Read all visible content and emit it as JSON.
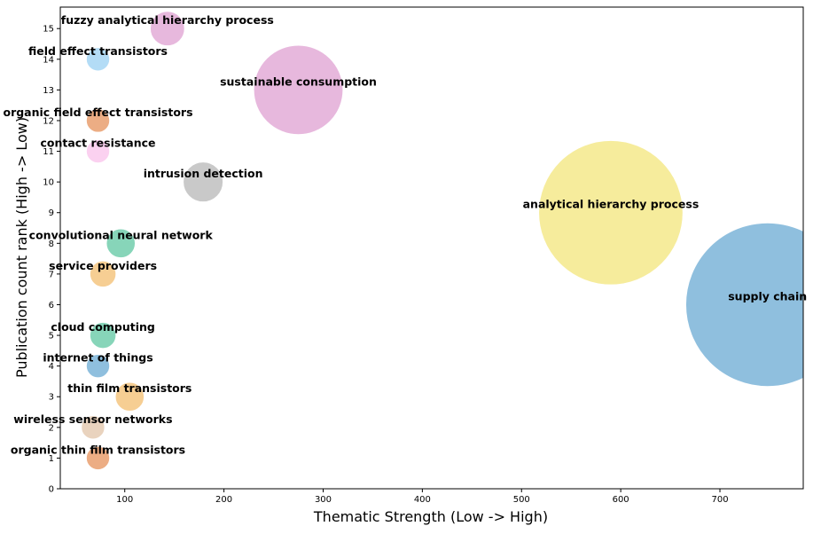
{
  "chart_data": {
    "type": "scatter",
    "title": "",
    "xlabel": "Thematic Strength (Low -> High)",
    "ylabel": "Publication count rank (High -> Low)",
    "xlim": [
      35,
      784
    ],
    "ylim": [
      0,
      15.7
    ],
    "x_ticks": [
      100,
      200,
      300,
      400,
      500,
      600,
      700
    ],
    "y_ticks": [
      0,
      1,
      2,
      3,
      4,
      5,
      6,
      7,
      8,
      9,
      10,
      11,
      12,
      13,
      14,
      15
    ],
    "grid": false,
    "legend": "none",
    "points": [
      {
        "label": "fuzzy analytical hierarchy process",
        "x": 143,
        "y": 15,
        "size": 13,
        "color": "#d98cc8"
      },
      {
        "label": "field effect transistors",
        "x": 73,
        "y": 14,
        "size": 9,
        "color": "#85c6f0"
      },
      {
        "label": "sustainable consumption",
        "x": 275,
        "y": 13,
        "size": 33,
        "color": "#d98cc8"
      },
      {
        "label": "organic field effect transistors",
        "x": 73,
        "y": 12,
        "size": 9,
        "color": "#e07b39"
      },
      {
        "label": "contact resistance",
        "x": 73,
        "y": 11,
        "size": 9,
        "color": "#f8b4e6"
      },
      {
        "label": "intrusion detection",
        "x": 179,
        "y": 10,
        "size": 15,
        "color": "#a8a8a8"
      },
      {
        "label": "analytical hierarchy process",
        "x": 590,
        "y": 9,
        "size": 53,
        "color": "#f0e060"
      },
      {
        "label": "convolutional neural network",
        "x": 96,
        "y": 8,
        "size": 11,
        "color": "#3dbb8e"
      },
      {
        "label": "service providers",
        "x": 78,
        "y": 7,
        "size": 10,
        "color": "#f0b050"
      },
      {
        "label": "supply chain",
        "x": 748,
        "y": 6,
        "size": 60,
        "color": "#4a97c9"
      },
      {
        "label": "cloud computing",
        "x": 78,
        "y": 5,
        "size": 10,
        "color": "#3dbb8e"
      },
      {
        "label": "internet of things",
        "x": 73,
        "y": 4,
        "size": 9,
        "color": "#4a97c9"
      },
      {
        "label": "thin film transistors",
        "x": 105,
        "y": 3,
        "size": 11,
        "color": "#f0b050"
      },
      {
        "label": "wireless sensor networks",
        "x": 68,
        "y": 2,
        "size": 9,
        "color": "#dcb896"
      },
      {
        "label": "organic thin film transistors",
        "x": 73,
        "y": 1,
        "size": 9,
        "color": "#e07b39"
      }
    ]
  }
}
